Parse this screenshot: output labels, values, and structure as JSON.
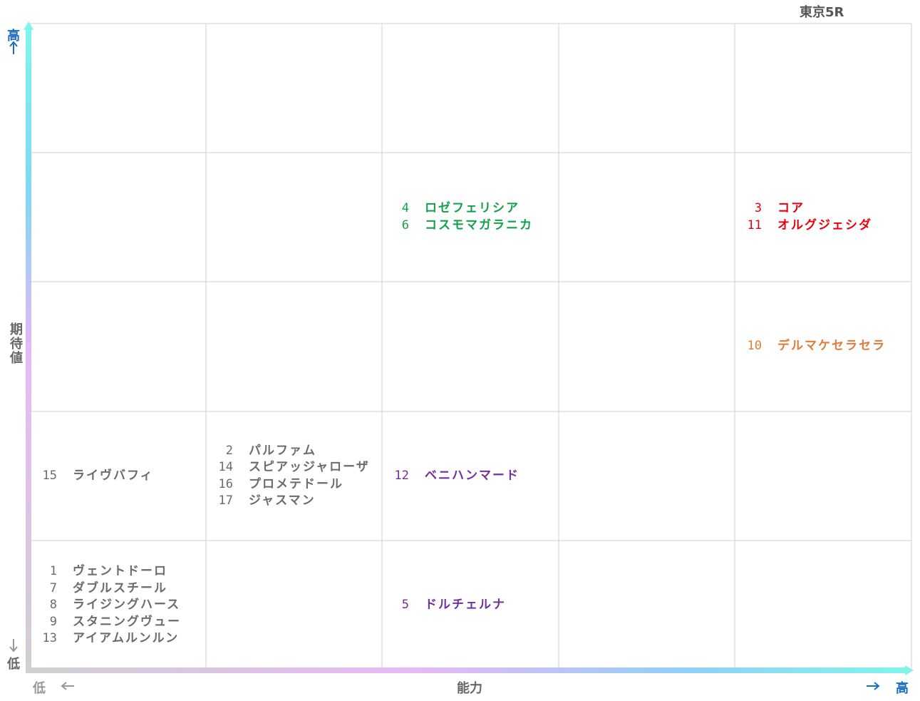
{
  "header": {
    "title": "東京5R"
  },
  "y_axis": {
    "high": "高",
    "label": "期待値",
    "low": "低"
  },
  "x_axis": {
    "low": "低",
    "label": "能力",
    "high": "高"
  },
  "grid": {
    "rows": [
      [
        null,
        null,
        null,
        null,
        null
      ],
      [
        null,
        null,
        {
          "color": "#12a14a",
          "entries": [
            {
              "number": 4,
              "name": "ロゼフェリシア"
            },
            {
              "number": 6,
              "name": "コスモマガラニカ"
            }
          ]
        },
        null,
        {
          "color": "#e8000b",
          "entries": [
            {
              "number": 3,
              "name": "コア"
            },
            {
              "number": 11,
              "name": "オルグジェシダ"
            }
          ]
        }
      ],
      [
        null,
        null,
        null,
        null,
        {
          "color": "#e07b39",
          "entries": [
            {
              "number": 10,
              "name": "デルマケセラセラ"
            }
          ]
        }
      ],
      [
        {
          "color": "#6b6b6b",
          "entries": [
            {
              "number": 15,
              "name": "ライヴバフィ"
            }
          ]
        },
        {
          "color": "#6b6b6b",
          "entries": [
            {
              "number": 2,
              "name": "パルファム"
            },
            {
              "number": 14,
              "name": "スピアッジャローザ"
            },
            {
              "number": 16,
              "name": "プロメテドール"
            },
            {
              "number": 17,
              "name": "ジャスマン"
            }
          ]
        },
        {
          "color": "#7030a0",
          "entries": [
            {
              "number": 12,
              "name": "ベニハンマード"
            }
          ]
        },
        null,
        null
      ],
      [
        {
          "color": "#6b6b6b",
          "entries": [
            {
              "number": 1,
              "name": "ヴェントドーロ"
            },
            {
              "number": 7,
              "name": "ダブルスチール"
            },
            {
              "number": 8,
              "name": "ライジングハース"
            },
            {
              "number": 9,
              "name": "スタニングヴュー"
            },
            {
              "number": 13,
              "name": "アイアムルンルン"
            }
          ]
        },
        null,
        {
          "color": "#7030a0",
          "entries": [
            {
              "number": 5,
              "name": "ドルチェルナ"
            }
          ]
        },
        null,
        null
      ]
    ]
  }
}
